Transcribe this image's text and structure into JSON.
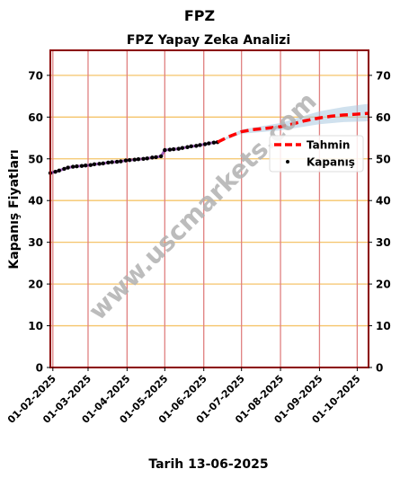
{
  "chart_data": {
    "type": "line",
    "suptitle": "FPZ",
    "title": "FPZ Yapay Zeka Analizi",
    "xlabel": "Tarih 13-06-2025",
    "ylabel": "Kapanış Fiyatları",
    "ylim": [
      0,
      76
    ],
    "yticks": [
      0,
      10,
      20,
      30,
      40,
      50,
      60,
      70
    ],
    "xlim": [
      "2025-01-30",
      "2025-10-10"
    ],
    "xticks": [
      "2025-02-01",
      "2025-03-01",
      "2025-04-01",
      "2025-05-01",
      "2025-06-01",
      "2025-07-01",
      "2025-08-01",
      "2025-09-01",
      "2025-10-01"
    ],
    "xtick_labels": [
      "01-02-2025",
      "01-03-2025",
      "01-04-2025",
      "01-05-2025",
      "01-06-2025",
      "01-07-2025",
      "01-08-2025",
      "01-09-2025",
      "01-10-2025"
    ],
    "grid": true,
    "legend_position": "right",
    "watermark": "www.uscmarkets.com",
    "colors": {
      "kapanis": "#000000",
      "tahmin": "#ff0000",
      "band": "#a9c8e0",
      "purple_trace": "#7a1fa2",
      "hgrid": "#f5c46a",
      "vgrid": "#e08080",
      "frame": "#8b0000"
    },
    "series": [
      {
        "name": "Kapanış",
        "style": "dots",
        "x": [
          "2025-01-30",
          "2025-02-03",
          "2025-02-06",
          "2025-02-10",
          "2025-02-13",
          "2025-02-17",
          "2025-02-20",
          "2025-02-24",
          "2025-02-27",
          "2025-03-03",
          "2025-03-06",
          "2025-03-10",
          "2025-03-13",
          "2025-03-17",
          "2025-03-20",
          "2025-03-24",
          "2025-03-27",
          "2025-03-31",
          "2025-04-03",
          "2025-04-07",
          "2025-04-10",
          "2025-04-14",
          "2025-04-17",
          "2025-04-21",
          "2025-04-24",
          "2025-04-28",
          "2025-05-01",
          "2025-05-05",
          "2025-05-08",
          "2025-05-12",
          "2025-05-15",
          "2025-05-19",
          "2025-05-22",
          "2025-05-26",
          "2025-05-29",
          "2025-06-02",
          "2025-06-05",
          "2025-06-09",
          "2025-06-12"
        ],
        "y": [
          46.6,
          46.9,
          47.2,
          47.6,
          47.9,
          48.1,
          48.2,
          48.3,
          48.4,
          48.5,
          48.7,
          48.8,
          48.9,
          49.1,
          49.2,
          49.3,
          49.4,
          49.6,
          49.7,
          49.8,
          49.9,
          50.0,
          50.1,
          50.3,
          50.4,
          50.6,
          52.1,
          52.2,
          52.3,
          52.4,
          52.6,
          52.8,
          53.0,
          53.1,
          53.3,
          53.5,
          53.7,
          53.9,
          54.0
        ]
      },
      {
        "name": "Tahmin",
        "style": "dashed",
        "x": [
          "2025-06-12",
          "2025-06-20",
          "2025-07-01",
          "2025-07-10",
          "2025-07-20",
          "2025-08-01",
          "2025-08-10",
          "2025-08-20",
          "2025-09-01",
          "2025-09-10",
          "2025-09-20",
          "2025-10-01",
          "2025-10-10"
        ],
        "y": [
          54.0,
          55.2,
          56.5,
          57.0,
          57.3,
          57.7,
          58.3,
          59.1,
          59.8,
          60.2,
          60.5,
          60.7,
          60.9
        ]
      }
    ],
    "confidence_band": {
      "x": [
        "2025-06-12",
        "2025-07-01",
        "2025-08-01",
        "2025-09-01",
        "2025-09-20",
        "2025-10-10"
      ],
      "lower": [
        53.8,
        56.0,
        56.8,
        58.3,
        58.8,
        59.0
      ],
      "upper": [
        54.2,
        57.0,
        58.6,
        61.4,
        62.4,
        63.2
      ]
    }
  }
}
